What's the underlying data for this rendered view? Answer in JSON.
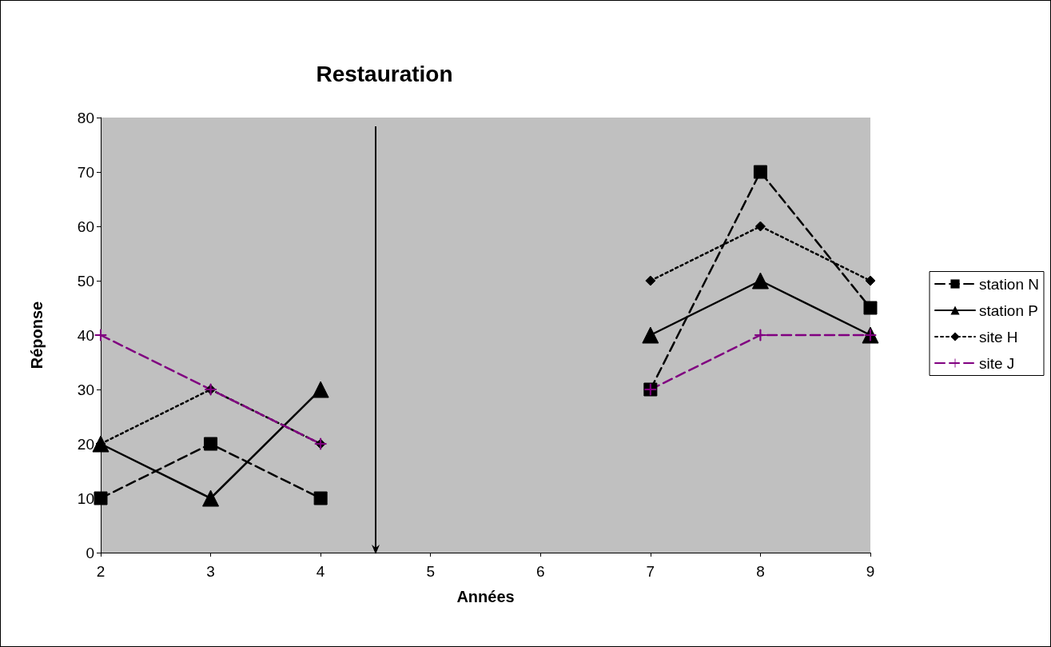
{
  "chart_data": {
    "type": "line",
    "title": "Restauration",
    "xlabel": "Années",
    "ylabel": "Réponse",
    "x": [
      2,
      3,
      4,
      5,
      6,
      7,
      8,
      9
    ],
    "series": [
      {
        "name": "station N",
        "color": "#000000",
        "marker": "square",
        "line_style": "dashed",
        "values": [
          10,
          20,
          10,
          null,
          null,
          30,
          70,
          45
        ]
      },
      {
        "name": "station P",
        "color": "#000000",
        "marker": "triangle",
        "line_style": "solid",
        "values": [
          20,
          10,
          30,
          null,
          null,
          40,
          50,
          40
        ]
      },
      {
        "name": "site H",
        "color": "#000000",
        "marker": "diamond",
        "line_style": "dotted",
        "values": [
          20,
          30,
          20,
          null,
          null,
          50,
          60,
          50
        ]
      },
      {
        "name": "site J",
        "color": "#800080",
        "marker": "cross",
        "line_style": "dashed",
        "values": [
          40,
          30,
          20,
          null,
          null,
          30,
          40,
          40
        ]
      }
    ],
    "xlim": [
      2,
      9
    ],
    "xticks": [
      2,
      3,
      4,
      5,
      6,
      7,
      8,
      9
    ],
    "ylim": [
      0,
      80
    ],
    "yticks": [
      0,
      10,
      20,
      30,
      40,
      50,
      60,
      70,
      80
    ],
    "ref_lines": [
      {
        "axis": "x",
        "value": 4.5,
        "color": "#000000",
        "line_style": "solid"
      }
    ],
    "grid": false,
    "legend": "right"
  }
}
